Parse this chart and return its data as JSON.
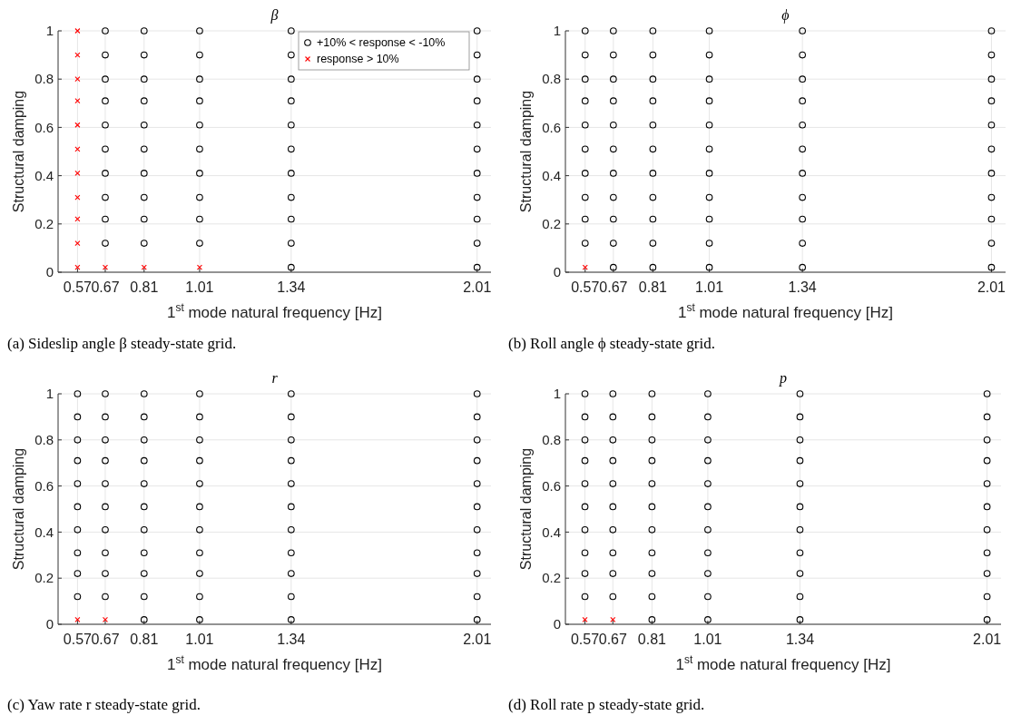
{
  "chart_data": [
    {
      "type": "scatter",
      "title": "β",
      "xlabel": "1$^{st}$ mode natural frequency [Hz]",
      "ylabel": "Structural damping",
      "xlim": [
        0.5,
        2.06
      ],
      "ylim": [
        0,
        1
      ],
      "xticks": [
        0.57,
        0.67,
        0.81,
        1.01,
        1.34,
        2.01
      ],
      "yticks": [
        0,
        0.2,
        0.4,
        0.6,
        0.8,
        1
      ],
      "grid": true,
      "legend": "top right",
      "annotations": [
        "(a) Sideslip angle β steady-state grid."
      ],
      "series": [
        {
          "name": "+10% < response < -10%",
          "color": "#000000",
          "marker": "circle",
          "x": [
            0.67,
            0.67,
            0.67,
            0.67,
            0.67,
            0.67,
            0.67,
            0.67,
            0.67,
            0.67,
            0.81,
            0.81,
            0.81,
            0.81,
            0.81,
            0.81,
            0.81,
            0.81,
            0.81,
            0.81,
            1.01,
            1.01,
            1.01,
            1.01,
            1.01,
            1.01,
            1.01,
            1.01,
            1.01,
            1.01,
            1.34,
            1.34,
            1.34,
            1.34,
            1.34,
            1.34,
            1.34,
            1.34,
            1.34,
            1.34,
            1.34,
            2.01,
            2.01,
            2.01,
            2.01,
            2.01,
            2.01,
            2.01,
            2.01,
            2.01,
            2.01,
            2.01
          ],
          "values": [
            0.12,
            0.22,
            0.31,
            0.41,
            0.51,
            0.61,
            0.71,
            0.8,
            0.9,
            1,
            0.12,
            0.22,
            0.31,
            0.41,
            0.51,
            0.61,
            0.71,
            0.8,
            0.9,
            1,
            0.12,
            0.22,
            0.31,
            0.41,
            0.51,
            0.61,
            0.71,
            0.8,
            0.9,
            1,
            0.02,
            0.12,
            0.22,
            0.31,
            0.41,
            0.51,
            0.61,
            0.71,
            0.8,
            0.9,
            1,
            0.02,
            0.12,
            0.22,
            0.31,
            0.41,
            0.51,
            0.61,
            0.71,
            0.8,
            0.9,
            1
          ]
        },
        {
          "name": "response > 10%",
          "color": "#ff0000",
          "marker": "cross",
          "x": [
            0.57,
            0.57,
            0.57,
            0.57,
            0.57,
            0.57,
            0.57,
            0.57,
            0.57,
            0.57,
            0.57,
            0.67,
            0.81,
            1.01
          ],
          "values": [
            0.02,
            0.12,
            0.22,
            0.31,
            0.41,
            0.51,
            0.61,
            0.71,
            0.8,
            0.9,
            1,
            0.02,
            0.02,
            0.02
          ]
        }
      ]
    },
    {
      "type": "scatter",
      "title": "ϕ",
      "xlabel": "1$^{st}$ mode natural frequency [Hz]",
      "ylabel": "Structural damping",
      "xlim": [
        0.5,
        2.06
      ],
      "ylim": [
        0,
        1
      ],
      "xticks": [
        0.57,
        0.67,
        0.81,
        1.01,
        1.34,
        2.01
      ],
      "yticks": [
        0,
        0.2,
        0.4,
        0.6,
        0.8,
        1
      ],
      "grid": true,
      "annotations": [
        "(b) Roll angle ϕ steady-state grid."
      ],
      "series": [
        {
          "color": "#000000",
          "marker": "circle",
          "x": [
            0.57,
            0.57,
            0.57,
            0.57,
            0.57,
            0.57,
            0.57,
            0.57,
            0.57,
            0.57,
            0.67,
            0.67,
            0.67,
            0.67,
            0.67,
            0.67,
            0.67,
            0.67,
            0.67,
            0.67,
            0.67,
            0.81,
            0.81,
            0.81,
            0.81,
            0.81,
            0.81,
            0.81,
            0.81,
            0.81,
            0.81,
            0.81,
            1.01,
            1.01,
            1.01,
            1.01,
            1.01,
            1.01,
            1.01,
            1.01,
            1.01,
            1.01,
            1.01,
            1.34,
            1.34,
            1.34,
            1.34,
            1.34,
            1.34,
            1.34,
            1.34,
            1.34,
            1.34,
            1.34,
            2.01,
            2.01,
            2.01,
            2.01,
            2.01,
            2.01,
            2.01,
            2.01,
            2.01,
            2.01,
            2.01
          ],
          "values": [
            0.12,
            0.22,
            0.31,
            0.41,
            0.51,
            0.61,
            0.71,
            0.8,
            0.9,
            1,
            0.02,
            0.12,
            0.22,
            0.31,
            0.41,
            0.51,
            0.61,
            0.71,
            0.8,
            0.9,
            1,
            0.02,
            0.12,
            0.22,
            0.31,
            0.41,
            0.51,
            0.61,
            0.71,
            0.8,
            0.9,
            1,
            0.02,
            0.12,
            0.22,
            0.31,
            0.41,
            0.51,
            0.61,
            0.71,
            0.8,
            0.9,
            1,
            0.02,
            0.12,
            0.22,
            0.31,
            0.41,
            0.51,
            0.61,
            0.71,
            0.8,
            0.9,
            1,
            0.02,
            0.12,
            0.22,
            0.31,
            0.41,
            0.51,
            0.61,
            0.71,
            0.8,
            0.9,
            1
          ]
        },
        {
          "color": "#ff0000",
          "marker": "cross",
          "x": [
            0.57
          ],
          "values": [
            0.02
          ]
        }
      ]
    },
    {
      "type": "scatter",
      "title": "r",
      "xlabel": "1$^{st}$ mode natural frequency [Hz]",
      "ylabel": "Structural damping",
      "xlim": [
        0.5,
        2.06
      ],
      "ylim": [
        0,
        1
      ],
      "xticks": [
        0.57,
        0.67,
        0.81,
        1.01,
        1.34,
        2.01
      ],
      "yticks": [
        0,
        0.2,
        0.4,
        0.6,
        0.8,
        1
      ],
      "grid": true,
      "annotations": [
        "(c) Yaw rate r steady-state grid."
      ],
      "series": [
        {
          "color": "#000000",
          "marker": "circle",
          "x": [
            0.57,
            0.57,
            0.57,
            0.57,
            0.57,
            0.57,
            0.57,
            0.57,
            0.57,
            0.57,
            0.67,
            0.67,
            0.67,
            0.67,
            0.67,
            0.67,
            0.67,
            0.67,
            0.67,
            0.67,
            0.81,
            0.81,
            0.81,
            0.81,
            0.81,
            0.81,
            0.81,
            0.81,
            0.81,
            0.81,
            0.81,
            1.01,
            1.01,
            1.01,
            1.01,
            1.01,
            1.01,
            1.01,
            1.01,
            1.01,
            1.01,
            1.01,
            1.34,
            1.34,
            1.34,
            1.34,
            1.34,
            1.34,
            1.34,
            1.34,
            1.34,
            1.34,
            1.34,
            2.01,
            2.01,
            2.01,
            2.01,
            2.01,
            2.01,
            2.01,
            2.01,
            2.01,
            2.01,
            2.01
          ],
          "values": [
            0.12,
            0.22,
            0.31,
            0.41,
            0.51,
            0.61,
            0.71,
            0.8,
            0.9,
            1,
            0.12,
            0.22,
            0.31,
            0.41,
            0.51,
            0.61,
            0.71,
            0.8,
            0.9,
            1,
            0.02,
            0.12,
            0.22,
            0.31,
            0.41,
            0.51,
            0.61,
            0.71,
            0.8,
            0.9,
            1,
            0.02,
            0.12,
            0.22,
            0.31,
            0.41,
            0.51,
            0.61,
            0.71,
            0.8,
            0.9,
            1,
            0.02,
            0.12,
            0.22,
            0.31,
            0.41,
            0.51,
            0.61,
            0.71,
            0.8,
            0.9,
            1,
            0.02,
            0.12,
            0.22,
            0.31,
            0.41,
            0.51,
            0.61,
            0.71,
            0.8,
            0.9,
            1
          ]
        },
        {
          "color": "#ff0000",
          "marker": "cross",
          "x": [
            0.57,
            0.67
          ],
          "values": [
            0.02,
            0.02
          ]
        }
      ]
    },
    {
      "type": "scatter",
      "title": "p",
      "xlabel": "1$^{st}$ mode natural frequency [Hz]",
      "ylabel": "Structural damping",
      "xlim": [
        0.5,
        2.06
      ],
      "ylim": [
        0,
        1
      ],
      "xticks": [
        0.57,
        0.67,
        0.81,
        1.01,
        1.34,
        2.01
      ],
      "yticks": [
        0,
        0.2,
        0.4,
        0.6,
        0.8,
        1
      ],
      "grid": true,
      "annotations": [
        "(d) Roll rate p steady-state grid."
      ],
      "series": [
        {
          "color": "#000000",
          "marker": "circle",
          "x": [
            0.57,
            0.57,
            0.57,
            0.57,
            0.57,
            0.57,
            0.57,
            0.57,
            0.57,
            0.57,
            0.67,
            0.67,
            0.67,
            0.67,
            0.67,
            0.67,
            0.67,
            0.67,
            0.67,
            0.67,
            0.81,
            0.81,
            0.81,
            0.81,
            0.81,
            0.81,
            0.81,
            0.81,
            0.81,
            0.81,
            0.81,
            1.01,
            1.01,
            1.01,
            1.01,
            1.01,
            1.01,
            1.01,
            1.01,
            1.01,
            1.01,
            1.01,
            1.34,
            1.34,
            1.34,
            1.34,
            1.34,
            1.34,
            1.34,
            1.34,
            1.34,
            1.34,
            1.34,
            2.01,
            2.01,
            2.01,
            2.01,
            2.01,
            2.01,
            2.01,
            2.01,
            2.01,
            2.01,
            2.01
          ],
          "values": [
            0.12,
            0.22,
            0.31,
            0.41,
            0.51,
            0.61,
            0.71,
            0.8,
            0.9,
            1,
            0.12,
            0.22,
            0.31,
            0.41,
            0.51,
            0.61,
            0.71,
            0.8,
            0.9,
            1,
            0.02,
            0.12,
            0.22,
            0.31,
            0.41,
            0.51,
            0.61,
            0.71,
            0.8,
            0.9,
            1,
            0.02,
            0.12,
            0.22,
            0.31,
            0.41,
            0.51,
            0.61,
            0.71,
            0.8,
            0.9,
            1,
            0.02,
            0.12,
            0.22,
            0.31,
            0.41,
            0.51,
            0.61,
            0.71,
            0.8,
            0.9,
            1,
            0.02,
            0.12,
            0.22,
            0.31,
            0.41,
            0.51,
            0.61,
            0.71,
            0.8,
            0.9,
            1
          ]
        },
        {
          "color": "#ff0000",
          "marker": "cross",
          "x": [
            0.57,
            0.67
          ],
          "values": [
            0.02,
            0.02
          ]
        }
      ]
    }
  ]
}
